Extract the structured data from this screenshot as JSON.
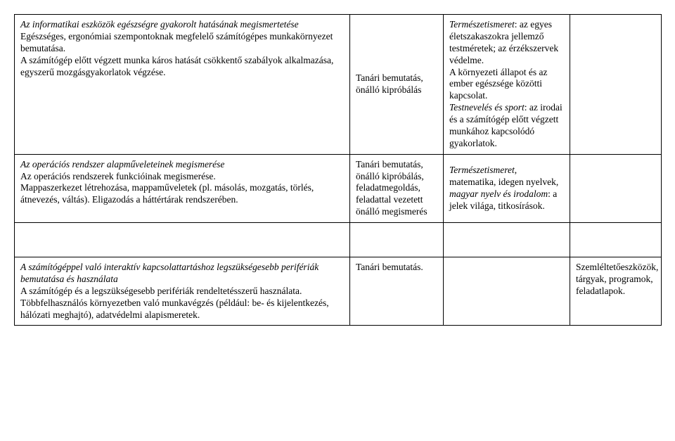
{
  "row1": {
    "col1_it1": "Az informatikai eszközök egészségre gyakorolt hatásának megismertetése",
    "col1_p1": "Egészséges, ergonómiai szempontoknak megfelelő számítógépes munkakörnyezet bemutatása.",
    "col1_p2": "A számítógép előtt végzett munka káros hatását csökkentő szabályok alkalmazása, egyszerű mozgásgyakorlatok végzése.",
    "col2": "Tanári bemutatás, önálló kipróbálás",
    "col3_it1": "Természetismeret",
    "col3_t1": ": az egyes életszakaszokra jellemző testméretek; az érzékszervek védelme.",
    "col3_t2": "A környezeti állapot és az ember egészsége közötti kapcsolat.",
    "col3_it2": "Testnevelés és sport",
    "col3_t3": ": az irodai és a számítógép előtt végzett munkához kapcsolódó gyakorlatok.",
    "col4": ""
  },
  "row2": {
    "col1_it1": "Az operációs rendszer alapműveleteinek megismerése",
    "col1_p1": "Az operációs rendszerek funkcióinak megismerése.",
    "col1_p2": "Mappaszerkezet létrehozása, mappaműveletek (pl. másolás, mozgatás, törlés, átnevezés, váltás). Eligazodás a háttértárak rendszerében.",
    "col2": "Tanári bemutatás, önálló kipróbálás, feladatmegoldás, feladattal vezetett önálló megismerés",
    "col3_it1": "Természetismeret",
    "col3_t1": ", matematika, idegen nyelvek, ",
    "col3_it2": "magyar nyelv és irodalom",
    "col3_t2": ": a jelek világa, titkosírások.",
    "col4": ""
  },
  "row3": {
    "col1_it1": "A számítógéppel való interaktív kapcsolattartáshoz legszükségesebb perifériák bem",
    "col1_it1b": "utatása és használata",
    "col1_p1": "A számítógép és a legszükségesebb perifériák rendeltetésszerű használata.",
    "col1_p2": "Többfelhasználós környezetben való munkavégzés (például: be- és kijelentkezés, hálózati meghajtó), adatvédelmi alapismeretek.",
    "col2": "Tanári bemutatás.",
    "col3": "",
    "col4": "Szemléltetőeszközök, tárgyak, programok, feladatlapok."
  }
}
